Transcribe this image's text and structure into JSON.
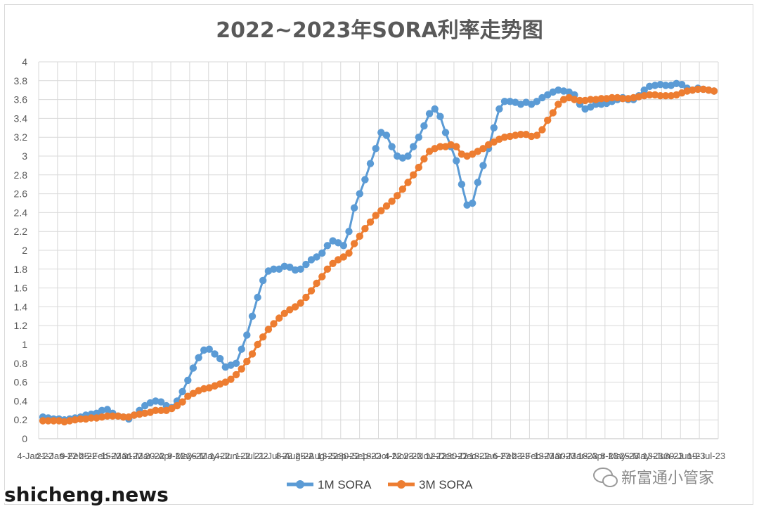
{
  "chart_data": {
    "type": "line",
    "title": "2022~2023年SORA利率走势图",
    "xlabel": "",
    "ylabel": "",
    "ylim": [
      0,
      4
    ],
    "ytick_step": 0.2,
    "yticks": [
      "0",
      "0.2",
      "0.4",
      "0.6",
      "0.8",
      "1",
      "1.2",
      "1.4",
      "1.6",
      "1.8",
      "2",
      "2.2",
      "2.4",
      "2.6",
      "2.8",
      "3",
      "3.2",
      "3.4",
      "3.6",
      "3.8",
      "4"
    ],
    "grid": true,
    "legend": "bottom-center",
    "xticks": [
      "4-Jan-22",
      "21-Jan-22",
      "9-Feb-22",
      "25-Feb-22",
      "15-Mar-22",
      "31-Mar-22",
      "20-Apr-22",
      "9-May-22",
      "26-May-22",
      "14-Jun-22",
      "1-Jul-22",
      "21-Jul-22",
      "8-Aug-22",
      "25-Aug-22",
      "13-Sep-22",
      "30-Sep-22",
      "18-Oct-22",
      "4-Nov-22",
      "23-Nov-22",
      "12-Dec-22",
      "30-Dec-22",
      "18-Jan-23",
      "6-Feb-23",
      "23-Feb-23",
      "13-Mar-23",
      "30-Mar-23",
      "18-Apr-23",
      "8-May-23",
      "25-May-23",
      "13-Jun-23",
      "30-Jun-23",
      "19-Jul-23"
    ],
    "x": [
      0,
      1,
      2,
      3,
      4,
      5,
      6,
      7,
      8,
      9,
      10,
      11,
      12,
      13,
      14,
      15,
      16,
      17,
      18,
      19,
      20,
      21,
      22,
      23,
      24,
      25,
      26,
      27,
      28,
      29,
      30,
      31,
      32,
      33,
      34,
      35,
      36,
      37,
      38,
      39,
      40,
      41,
      42,
      43,
      44,
      45,
      46,
      47,
      48,
      49,
      50,
      51,
      52,
      53,
      54,
      55,
      56,
      57,
      58,
      59,
      60,
      61,
      62,
      63,
      64,
      65,
      66,
      67,
      68,
      69,
      70,
      71,
      72,
      73,
      74,
      75,
      76,
      77,
      78,
      79,
      80,
      81,
      82,
      83,
      84,
      85,
      86,
      87,
      88,
      89,
      90,
      91,
      92,
      93,
      94,
      95,
      96,
      97,
      98,
      99,
      100,
      101,
      102,
      103,
      104,
      105,
      106,
      107,
      108,
      109,
      110,
      111,
      112,
      113,
      114,
      115,
      116,
      117,
      118,
      119,
      120,
      121,
      122,
      123,
      124,
      125
    ],
    "series": [
      {
        "name": "1M SORA",
        "color": "#5B9BD5",
        "values": [
          0.23,
          0.22,
          0.21,
          0.21,
          0.2,
          0.21,
          0.22,
          0.23,
          0.25,
          0.26,
          0.27,
          0.3,
          0.31,
          0.27,
          0.24,
          0.23,
          0.21,
          0.25,
          0.3,
          0.35,
          0.38,
          0.4,
          0.39,
          0.35,
          0.33,
          0.4,
          0.5,
          0.62,
          0.75,
          0.86,
          0.94,
          0.95,
          0.9,
          0.85,
          0.76,
          0.78,
          0.8,
          0.95,
          1.1,
          1.3,
          1.5,
          1.68,
          1.78,
          1.8,
          1.8,
          1.83,
          1.82,
          1.79,
          1.8,
          1.85,
          1.9,
          1.93,
          1.97,
          2.05,
          2.1,
          2.08,
          2.05,
          2.2,
          2.45,
          2.6,
          2.75,
          2.92,
          3.08,
          3.25,
          3.22,
          3.1,
          3.0,
          2.98,
          3.0,
          3.1,
          3.2,
          3.32,
          3.45,
          3.5,
          3.42,
          3.25,
          3.1,
          2.95,
          2.7,
          2.48,
          2.5,
          2.72,
          2.9,
          3.08,
          3.3,
          3.5,
          3.58,
          3.58,
          3.57,
          3.55,
          3.57,
          3.55,
          3.58,
          3.62,
          3.65,
          3.68,
          3.7,
          3.69,
          3.68,
          3.65,
          3.55,
          3.5,
          3.52,
          3.55,
          3.55,
          3.56,
          3.58,
          3.6,
          3.62,
          3.6,
          3.6,
          3.64,
          3.7,
          3.74,
          3.75,
          3.76,
          3.75,
          3.75,
          3.77,
          3.76,
          3.72,
          3.7,
          3.72,
          3.71,
          3.7,
          3.69
        ]
      },
      {
        "name": "3M SORA",
        "color": "#ED7D31",
        "values": [
          0.19,
          0.19,
          0.19,
          0.19,
          0.18,
          0.19,
          0.2,
          0.21,
          0.21,
          0.22,
          0.22,
          0.23,
          0.24,
          0.24,
          0.24,
          0.23,
          0.23,
          0.25,
          0.26,
          0.27,
          0.28,
          0.3,
          0.3,
          0.3,
          0.32,
          0.35,
          0.39,
          0.45,
          0.48,
          0.51,
          0.53,
          0.54,
          0.56,
          0.58,
          0.6,
          0.63,
          0.68,
          0.74,
          0.82,
          0.9,
          1.0,
          1.08,
          1.16,
          1.22,
          1.28,
          1.33,
          1.37,
          1.4,
          1.44,
          1.5,
          1.57,
          1.65,
          1.72,
          1.8,
          1.86,
          1.9,
          1.93,
          1.97,
          2.07,
          2.15,
          2.23,
          2.3,
          2.37,
          2.42,
          2.47,
          2.52,
          2.58,
          2.65,
          2.72,
          2.8,
          2.88,
          2.97,
          3.05,
          3.08,
          3.1,
          3.1,
          3.12,
          3.1,
          3.02,
          3.0,
          3.02,
          3.05,
          3.08,
          3.12,
          3.15,
          3.18,
          3.2,
          3.21,
          3.22,
          3.23,
          3.23,
          3.21,
          3.22,
          3.28,
          3.38,
          3.46,
          3.55,
          3.6,
          3.62,
          3.6,
          3.59,
          3.59,
          3.6,
          3.6,
          3.61,
          3.61,
          3.62,
          3.62,
          3.61,
          3.61,
          3.62,
          3.63,
          3.64,
          3.65,
          3.65,
          3.64,
          3.64,
          3.64,
          3.65,
          3.67,
          3.69,
          3.7,
          3.71,
          3.71,
          3.7,
          3.69
        ]
      }
    ]
  },
  "watermarks": {
    "left": "shicheng.news",
    "right": "新富通小管家",
    "right_icon": "wechat-bubble-icon"
  }
}
